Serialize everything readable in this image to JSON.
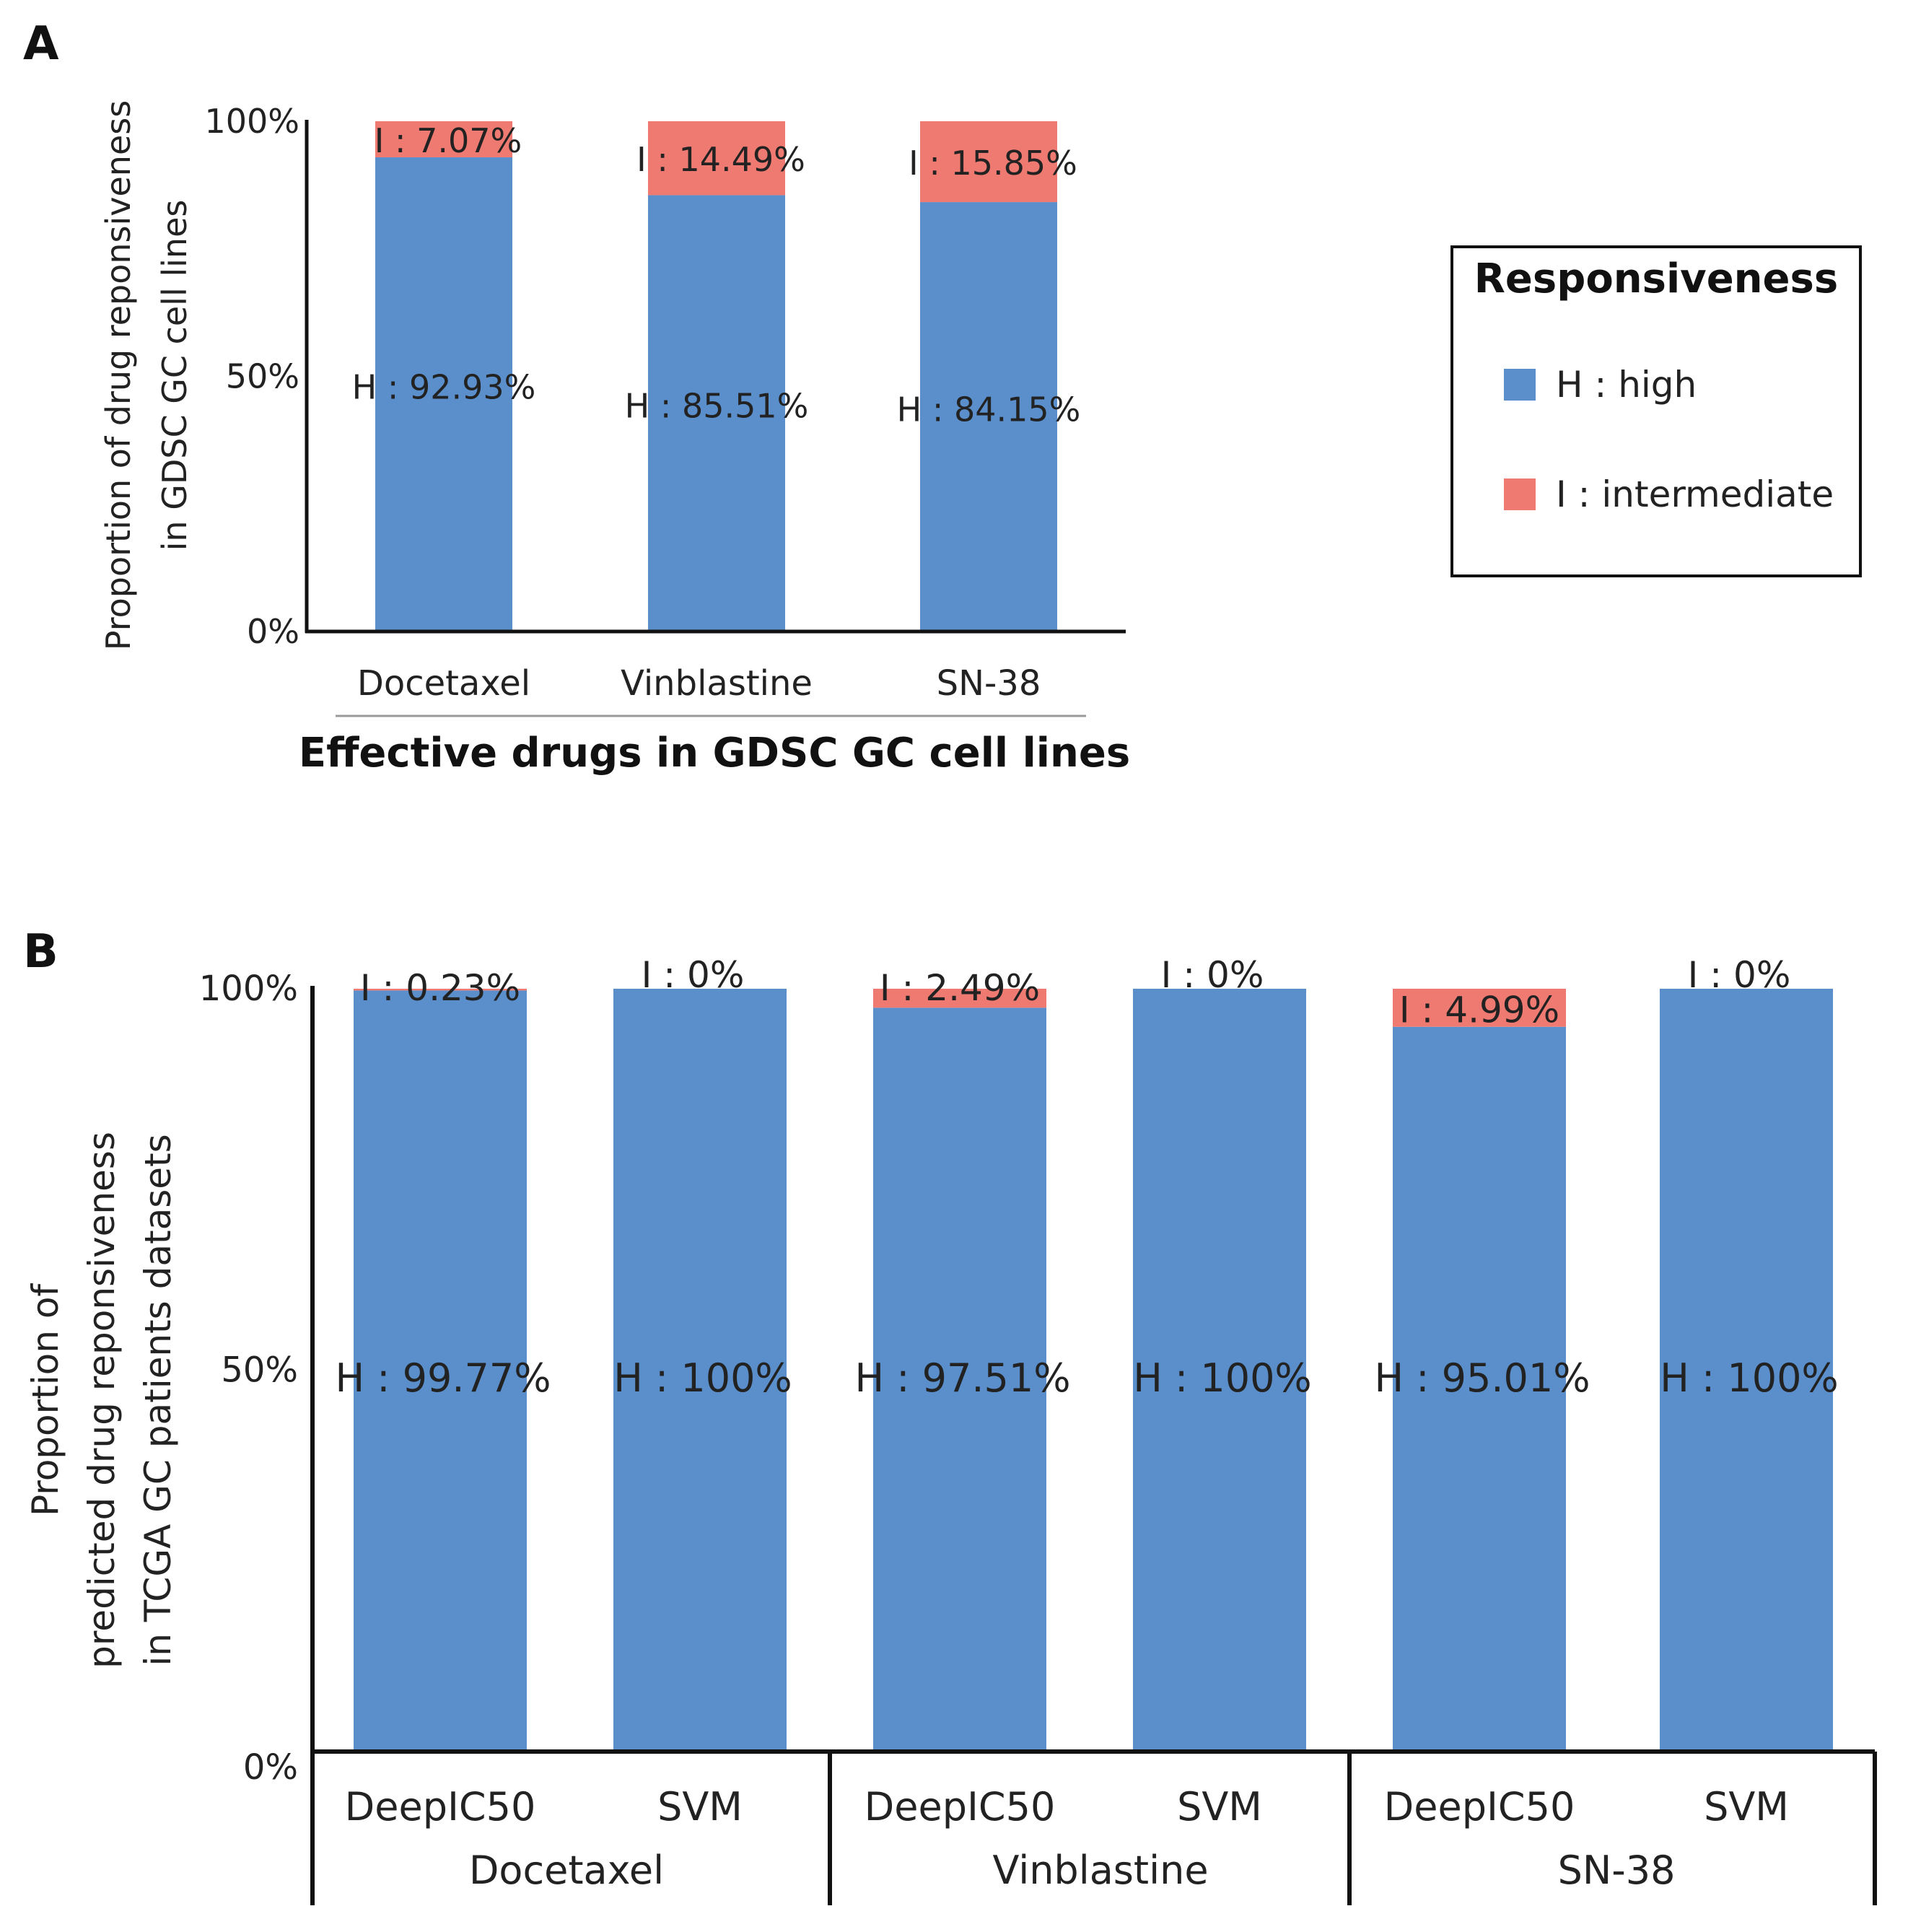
{
  "colors": {
    "high": "#5B8FCB",
    "intermediate": "#EE7A72",
    "axis": "#111111",
    "text": "#222222"
  },
  "panels": {
    "a": "A",
    "b": "B"
  },
  "legend": {
    "title": "Responsiveness",
    "items": [
      {
        "key": "high",
        "label": "H : high"
      },
      {
        "key": "intermediate",
        "label": "I : intermediate"
      }
    ]
  },
  "chart_data": [
    {
      "panel": "A",
      "type": "bar",
      "stacked": true,
      "categories": [
        "Docetaxel",
        "Vinblastine",
        "SN-38"
      ],
      "series": [
        {
          "name": "H : high",
          "values": [
            92.93,
            85.51,
            84.15
          ]
        },
        {
          "name": "I : intermediate",
          "values": [
            7.07,
            14.49,
            15.85
          ]
        }
      ],
      "high_labels": [
        "H : 92.93%",
        "H : 85.51%",
        "H : 84.15%"
      ],
      "intermediate_labels": [
        "I : 7.07%",
        "I : 14.49%",
        "I : 15.85%"
      ],
      "y_ticks": [
        "0%",
        "50%",
        "100%"
      ],
      "ylim": [
        0,
        100
      ],
      "xlabel": "Effective drugs in GDSC GC cell lines",
      "ylabel_lines": [
        "Proportion of drug reponsiveness",
        "in GDSC GC cell lines"
      ],
      "legend": "right"
    },
    {
      "panel": "B",
      "type": "bar",
      "stacked": true,
      "groups": [
        "Docetaxel",
        "Vinblastine",
        "SN-38"
      ],
      "categories": [
        "DeepIC50",
        "SVM",
        "DeepIC50",
        "SVM",
        "DeepIC50",
        "SVM"
      ],
      "series": [
        {
          "name": "H : high",
          "values": [
            99.77,
            100,
            97.51,
            100,
            95.01,
            100
          ]
        },
        {
          "name": "I : intermediate",
          "values": [
            0.23,
            0,
            2.49,
            0,
            4.99,
            0
          ]
        }
      ],
      "high_labels": [
        "H : 99.77%",
        "H : 100%",
        "H : 97.51%",
        "H : 100%",
        "H : 95.01%",
        "H : 100%"
      ],
      "intermediate_labels": [
        "I : 0.23%",
        "I : 0%",
        "I : 2.49%",
        "I : 0%",
        "I : 4.99%",
        "I : 0%"
      ],
      "y_ticks": [
        "0%",
        "50%",
        "100%"
      ],
      "ylim": [
        0,
        100
      ],
      "ylabel_lines": [
        "Proportion of",
        "predicted drug reponsiveness",
        "in TCGA GC patients datasets"
      ]
    }
  ]
}
